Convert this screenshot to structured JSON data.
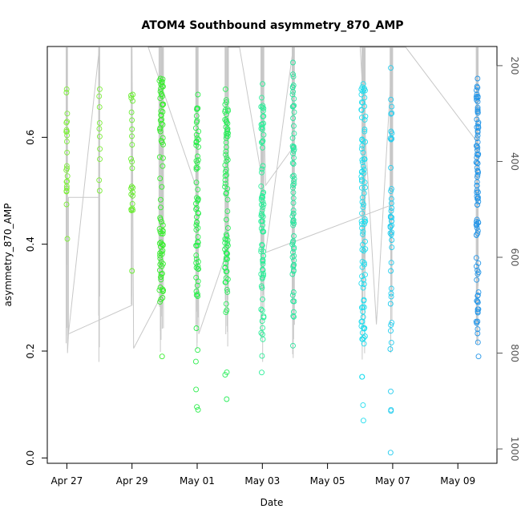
{
  "chart_data": {
    "type": "scatter",
    "title": "ATOM4 Southbound asymmetry_870_AMP",
    "xlabel": "Date",
    "ylabel": "asymmetry_870_AMP",
    "x_ticks": [
      {
        "day": 0,
        "label": "Apr 27"
      },
      {
        "day": 2,
        "label": "Apr 29"
      },
      {
        "day": 4,
        "label": "May 01"
      },
      {
        "day": 6,
        "label": "May 03"
      },
      {
        "day": 8,
        "label": "May 05"
      },
      {
        "day": 10,
        "label": "May 07"
      },
      {
        "day": 12,
        "label": "May 09"
      }
    ],
    "y_ticks": [
      {
        "value": 0.0,
        "label": "0.0"
      },
      {
        "value": 0.2,
        "label": "0.2"
      },
      {
        "value": 0.4,
        "label": "0.4"
      },
      {
        "value": 0.6,
        "label": "0.6"
      }
    ],
    "y2_label": "",
    "y2_ticks": [
      {
        "value": 200,
        "label": "200"
      },
      {
        "value": 400,
        "label": "400"
      },
      {
        "value": 600,
        "label": "600"
      },
      {
        "value": 800,
        "label": "800"
      },
      {
        "value": 1000,
        "label": "1000"
      }
    ],
    "x_range_days": [
      -0.6,
      13.2
    ],
    "y_range": [
      -0.01,
      0.77
    ],
    "y2_range": [
      1030,
      160
    ],
    "grid": false,
    "clusters": [
      {
        "day": 0.0,
        "spread": 0.04,
        "n": 24,
        "min": 0.41,
        "max": 0.69,
        "core_lo": 0.47,
        "core_hi": 0.64,
        "color": "#7fee3c"
      },
      {
        "day": 1.0,
        "spread": 0.04,
        "n": 10,
        "min": 0.5,
        "max": 0.69,
        "core_lo": 0.5,
        "core_hi": 0.69,
        "color": "#7fee3c"
      },
      {
        "day": 2.0,
        "spread": 0.06,
        "n": 24,
        "min": 0.35,
        "max": 0.68,
        "core_lo": 0.46,
        "core_hi": 0.68,
        "color": "#69ee30"
      },
      {
        "day": 2.9,
        "spread": 0.12,
        "n": 80,
        "min": 0.19,
        "max": 0.71,
        "core_lo": 0.29,
        "core_hi": 0.71,
        "color": "#38ee2e"
      },
      {
        "day": 4.0,
        "spread": 0.08,
        "n": 70,
        "min": 0.09,
        "max": 0.68,
        "core_lo": 0.3,
        "core_hi": 0.67,
        "color": "#2cee4c"
      },
      {
        "day": 4.9,
        "spread": 0.1,
        "n": 80,
        "min": 0.11,
        "max": 0.69,
        "core_lo": 0.26,
        "core_hi": 0.68,
        "color": "#2cee5c"
      },
      {
        "day": 6.0,
        "spread": 0.08,
        "n": 80,
        "min": 0.16,
        "max": 0.7,
        "core_lo": 0.23,
        "core_hi": 0.68,
        "color": "#2cee99"
      },
      {
        "day": 6.95,
        "spread": 0.06,
        "n": 70,
        "min": 0.21,
        "max": 0.74,
        "core_lo": 0.25,
        "core_hi": 0.72,
        "color": "#2ce6a0"
      },
      {
        "day": 9.1,
        "spread": 0.13,
        "n": 95,
        "min": 0.07,
        "max": 0.7,
        "core_lo": 0.2,
        "core_hi": 0.7,
        "color": "#22ddee"
      },
      {
        "day": 9.95,
        "spread": 0.05,
        "n": 45,
        "min": 0.01,
        "max": 0.73,
        "core_lo": 0.19,
        "core_hi": 0.68,
        "color": "#22ccee"
      },
      {
        "day": 12.6,
        "spread": 0.07,
        "n": 95,
        "min": 0.19,
        "max": 0.71,
        "core_lo": 0.24,
        "core_hi": 0.7,
        "color": "#2596e8"
      }
    ],
    "depth_trace": [
      [
        0.02,
        475
      ],
      [
        0.02,
        800
      ],
      [
        0.05,
        760
      ],
      [
        0.05,
        475
      ],
      [
        1.0,
        475
      ],
      [
        1.0,
        160
      ],
      [
        0.05,
        760
      ],
      [
        2.0,
        700
      ],
      [
        2.0,
        160
      ],
      [
        2.05,
        790
      ],
      [
        2.9,
        680
      ],
      [
        2.9,
        160
      ],
      [
        2.5,
        160
      ],
      [
        4.0,
        460
      ],
      [
        4.0,
        160
      ],
      [
        4.05,
        760
      ],
      [
        4.95,
        580
      ],
      [
        4.95,
        160
      ],
      [
        5.3,
        160
      ],
      [
        6.0,
        440
      ],
      [
        6.0,
        160
      ],
      [
        6.1,
        450
      ],
      [
        6.95,
        370
      ],
      [
        6.95,
        160
      ],
      [
        6.1,
        590
      ],
      [
        10.0,
        490
      ],
      [
        10.0,
        160
      ],
      [
        9.5,
        740
      ],
      [
        9.0,
        160
      ],
      [
        10.4,
        160
      ],
      [
        12.6,
        360
      ],
      [
        12.6,
        160
      ]
    ]
  }
}
